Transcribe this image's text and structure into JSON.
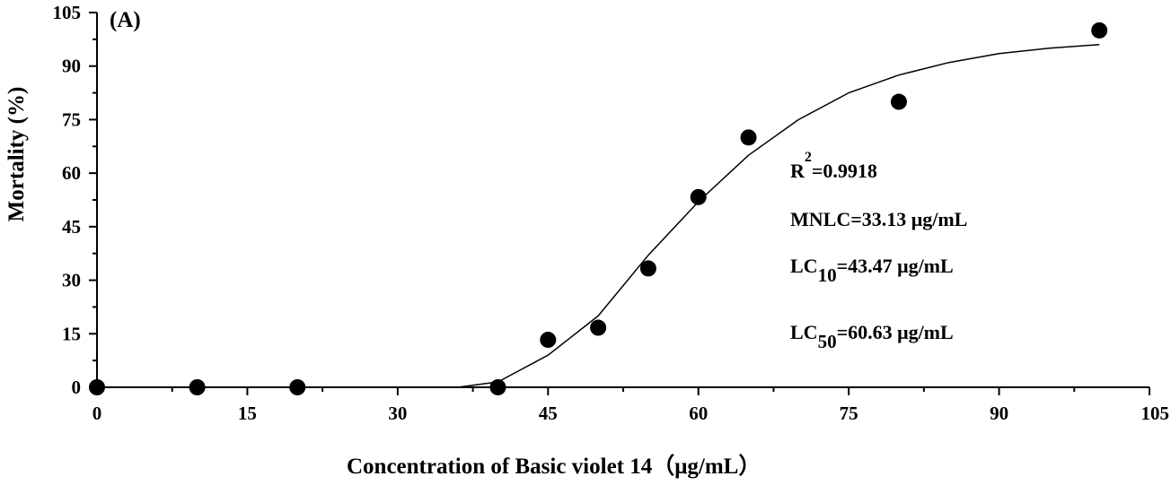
{
  "chart_data": {
    "type": "scatter",
    "panel_label": "(A)",
    "xlabel": "Concentration of Basic violet 14（μg/mL）",
    "ylabel": "Mortality (%)",
    "xlim": [
      0,
      105
    ],
    "ylim": [
      0,
      105
    ],
    "x_ticks": [
      0,
      15,
      30,
      45,
      60,
      75,
      90,
      105
    ],
    "x_tick_labels": [
      "0",
      "15",
      "30",
      "45",
      "60",
      "75",
      "90",
      "105"
    ],
    "y_ticks": [
      0,
      15,
      30,
      45,
      60,
      75,
      90,
      105
    ],
    "y_tick_labels": [
      "0",
      "15",
      "30",
      "45",
      "60",
      "75",
      "90",
      "105"
    ],
    "series": [
      {
        "name": "Observed mortality",
        "x": [
          0,
          10,
          20,
          40,
          45,
          50,
          55,
          60,
          65,
          80,
          100
        ],
        "y": [
          0,
          0,
          0,
          0,
          13.3,
          16.7,
          33.3,
          53.3,
          70,
          80,
          100
        ]
      }
    ],
    "fit_curve": {
      "name": "Fitted curve",
      "x": [
        36,
        40,
        45,
        50,
        55,
        60,
        65,
        70,
        75,
        80,
        85,
        90,
        95,
        100
      ],
      "y": [
        0,
        1.5,
        9,
        20,
        37,
        52,
        65,
        75,
        82.5,
        87.5,
        91,
        93.5,
        95,
        96
      ]
    },
    "annotations": {
      "r2_base": "R",
      "r2_sup": "2",
      "r2_value": "=0.9918",
      "mnlc": "MNLC=33.13 μg/mL",
      "lc10_base": "LC",
      "lc10_sub": "10",
      "lc10_value": "=43.47 μg/mL",
      "lc50_base": "LC",
      "lc50_sub": "50",
      "lc50_value": "=60.63 μg/mL"
    }
  }
}
